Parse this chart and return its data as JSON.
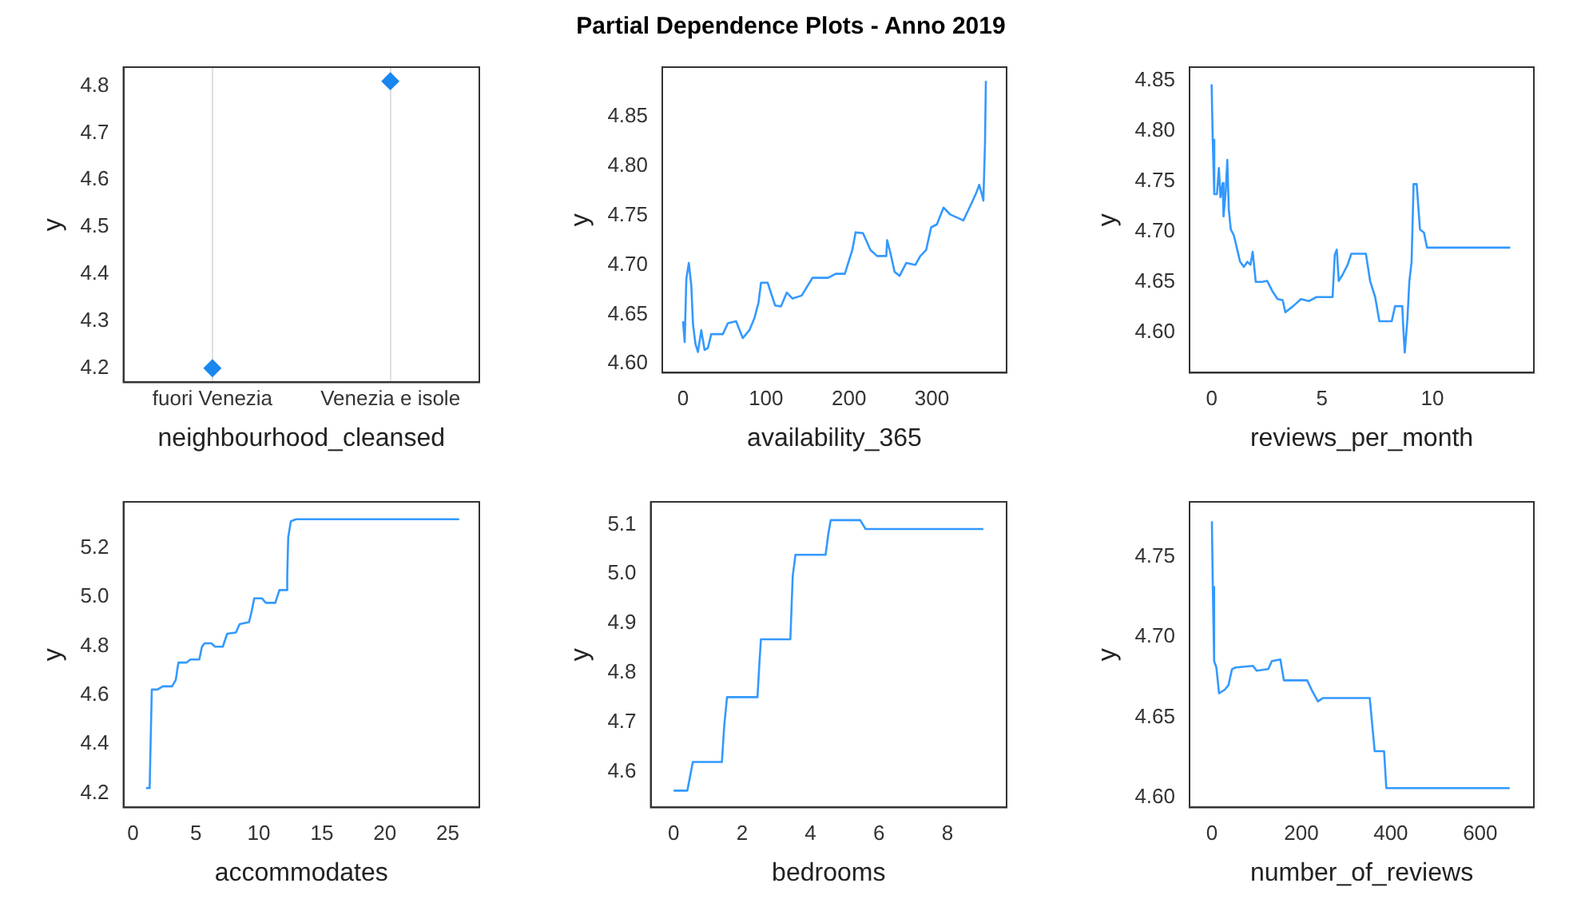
{
  "chart_data": [
    {
      "type": "scatter",
      "xlabel": "neighbourhood_cleansed",
      "ylabel": "y",
      "categories": [
        "fuori Venezia",
        "Venezia e isole"
      ],
      "values": [
        4.2,
        4.81
      ],
      "color": "#1a86f0",
      "marker": "diamond",
      "grid": "x",
      "legend": false,
      "ylim": [
        4.17,
        4.84
      ],
      "yticks": [
        4.2,
        4.3,
        4.4,
        4.5,
        4.6,
        4.7,
        4.8
      ]
    },
    {
      "type": "line",
      "title": "Partial Dependence Plots - Anno 2019",
      "xlabel": "availability_365",
      "ylabel": "y",
      "color": "#3399ff",
      "marker": "none",
      "line_style": "solid",
      "grid": false,
      "legend": false,
      "xlim": [
        -25,
        390
      ],
      "xticks": [
        0,
        100,
        200,
        300
      ],
      "ylim": [
        4.591,
        4.9
      ],
      "yticks": [
        {
          "value": 4.6,
          "label": "4.60"
        },
        {
          "value": 4.65,
          "label": "4.65"
        },
        {
          "value": 4.7,
          "label": "4.70"
        },
        {
          "value": 4.75,
          "label": "4.75"
        },
        {
          "value": 4.8,
          "label": "4.80"
        },
        {
          "value": 4.85,
          "label": "4.85"
        }
      ],
      "x": [
        0,
        2,
        4,
        7,
        10,
        12,
        15,
        18,
        22,
        26,
        30,
        34,
        48,
        54,
        64,
        72,
        80,
        86,
        91,
        94,
        102,
        111,
        118,
        125,
        132,
        143,
        156,
        175,
        184,
        195,
        204,
        208,
        217,
        226,
        234,
        245,
        246,
        250,
        255,
        261,
        269,
        280,
        286,
        293,
        299,
        306,
        314,
        322,
        338,
        347,
        354,
        357,
        360,
        362,
        364,
        365
      ],
      "values": [
        4.643,
        4.622,
        4.686,
        4.702,
        4.679,
        4.64,
        4.62,
        4.612,
        4.634,
        4.614,
        4.616,
        4.63,
        4.63,
        4.641,
        4.643,
        4.626,
        4.634,
        4.646,
        4.662,
        4.682,
        4.682,
        4.659,
        4.658,
        4.672,
        4.666,
        4.669,
        4.687,
        4.687,
        4.691,
        4.691,
        4.715,
        4.733,
        4.732,
        4.715,
        4.709,
        4.709,
        4.725,
        4.712,
        4.693,
        4.689,
        4.702,
        4.7,
        4.709,
        4.715,
        4.738,
        4.741,
        4.758,
        4.751,
        4.745,
        4.761,
        4.774,
        4.781,
        4.772,
        4.765,
        4.824,
        4.886
      ]
    },
    {
      "type": "line",
      "xlabel": "reviews_per_month",
      "ylabel": "y",
      "color": "#3399ff",
      "marker": "none",
      "line_style": "solid",
      "grid": false,
      "legend": false,
      "xlim": [
        -1,
        14.6
      ],
      "xticks": [
        0,
        5,
        10
      ],
      "ylim": [
        4.56,
        4.863
      ],
      "yticks": [
        {
          "value": 4.6,
          "label": "4.60"
        },
        {
          "value": 4.65,
          "label": "4.65"
        },
        {
          "value": 4.7,
          "label": "4.70"
        },
        {
          "value": 4.75,
          "label": "4.75"
        },
        {
          "value": 4.8,
          "label": "4.80"
        },
        {
          "value": 4.85,
          "label": "4.85"
        }
      ],
      "x": [
        0,
        0.05,
        0.12,
        0.24,
        0.33,
        0.4,
        0.5,
        0.54,
        0.64,
        0.71,
        0.78,
        0.87,
        1.01,
        1.15,
        1.29,
        1.46,
        1.62,
        1.76,
        1.86,
        2.0,
        2.28,
        2.52,
        2.75,
        2.99,
        3.22,
        3.34,
        3.69,
        4.05,
        4.4,
        4.75,
        5.34,
        5.48,
        5.58,
        5.67,
        5.76,
        5.93,
        6.16,
        6.33,
        6.99,
        7.18,
        7.41,
        7.6,
        8.16,
        8.31,
        8.64,
        8.68,
        8.75,
        8.87,
        8.96,
        9.06,
        9.15,
        9.29,
        9.44,
        9.62,
        9.76,
        13.53
      ],
      "values": [
        4.846,
        4.791,
        4.737,
        4.737,
        4.763,
        4.734,
        4.748,
        4.715,
        4.74,
        4.771,
        4.721,
        4.702,
        4.696,
        4.683,
        4.67,
        4.665,
        4.67,
        4.667,
        4.68,
        4.65,
        4.65,
        4.651,
        4.641,
        4.633,
        4.632,
        4.62,
        4.626,
        4.633,
        4.631,
        4.635,
        4.635,
        4.635,
        4.677,
        4.682,
        4.651,
        4.657,
        4.667,
        4.678,
        4.678,
        4.651,
        4.635,
        4.611,
        4.611,
        4.626,
        4.626,
        4.606,
        4.58,
        4.613,
        4.651,
        4.67,
        4.747,
        4.747,
        4.702,
        4.699,
        4.684,
        4.684
      ]
    },
    {
      "type": "line",
      "xlabel": "accommodates",
      "ylabel": "y",
      "color": "#3399ff",
      "marker": "none",
      "line_style": "solid",
      "grid": false,
      "legend": false,
      "xlim": [
        -0.75,
        27.5
      ],
      "xticks": [
        0,
        5,
        10,
        15,
        20,
        25
      ],
      "ylim": [
        4.142,
        5.389
      ],
      "yticks": [
        4.2,
        4.4,
        4.6,
        4.8,
        {
          "value": 5,
          "label": "5.0"
        },
        5.2
      ],
      "x": [
        1.04,
        1.33,
        1.41,
        1.5,
        1.95,
        2.37,
        3.11,
        3.4,
        3.61,
        4.24,
        4.57,
        5.27,
        5.48,
        5.69,
        6.23,
        6.52,
        7.14,
        7.48,
        8.18,
        8.47,
        9.22,
        9.43,
        9.63,
        10.25,
        10.55,
        11.3,
        11.63,
        12.21,
        12.25,
        12.33,
        12.54,
        12.96,
        25.9
      ],
      "values": [
        4.221,
        4.221,
        4.418,
        4.623,
        4.623,
        4.636,
        4.636,
        4.662,
        4.733,
        4.733,
        4.746,
        4.746,
        4.798,
        4.812,
        4.812,
        4.798,
        4.798,
        4.851,
        4.856,
        4.89,
        4.898,
        4.943,
        4.995,
        4.995,
        4.977,
        4.977,
        5.029,
        5.029,
        5.087,
        5.245,
        5.31,
        5.318,
        5.318
      ]
    },
    {
      "type": "line",
      "xlabel": "bedrooms",
      "ylabel": "y",
      "color": "#3399ff",
      "marker": "none",
      "line_style": "solid",
      "grid": false,
      "legend": false,
      "xlim": [
        -0.67,
        9.73
      ],
      "xticks": [
        0,
        2,
        4,
        6,
        8
      ],
      "ylim": [
        4.528,
        5.146
      ],
      "yticks": [
        4.6,
        4.7,
        4.8,
        4.9,
        {
          "value": 5,
          "label": "5.0"
        },
        5.1
      ],
      "x": [
        0,
        0.4,
        0.48,
        0.56,
        1.41,
        1.48,
        1.56,
        2.45,
        2.5,
        2.55,
        3.41,
        3.48,
        3.56,
        4.44,
        4.52,
        4.59,
        5.45,
        5.61,
        9.05
      ],
      "values": [
        4.562,
        4.562,
        4.591,
        4.62,
        4.62,
        4.695,
        4.751,
        4.751,
        4.813,
        4.868,
        4.868,
        4.996,
        5.039,
        5.039,
        5.081,
        5.109,
        5.109,
        5.091,
        5.091
      ]
    },
    {
      "type": "line",
      "xlabel": "number_of_reviews",
      "ylabel": "y",
      "color": "#3399ff",
      "marker": "none",
      "line_style": "solid",
      "grid": false,
      "legend": false,
      "xlim": [
        -50,
        720
      ],
      "xticks": [
        0,
        200,
        400,
        600
      ],
      "ylim": [
        4.594,
        4.784
      ],
      "yticks": [
        {
          "value": 4.6,
          "label": "4.60"
        },
        {
          "value": 4.65,
          "label": "4.65"
        },
        {
          "value": 4.7,
          "label": "4.70"
        },
        {
          "value": 4.75,
          "label": "4.75"
        }
      ],
      "x": [
        0,
        2,
        5,
        10,
        16,
        28,
        37,
        45,
        53,
        92,
        100,
        126,
        134,
        153,
        161,
        213,
        225,
        237,
        248,
        353,
        364,
        385,
        390,
        666
      ],
      "values": [
        4.772,
        4.731,
        4.685,
        4.681,
        4.665,
        4.667,
        4.67,
        4.68,
        4.681,
        4.682,
        4.679,
        4.68,
        4.685,
        4.686,
        4.673,
        4.673,
        4.666,
        4.66,
        4.662,
        4.662,
        4.629,
        4.629,
        4.606,
        4.606
      ]
    }
  ]
}
